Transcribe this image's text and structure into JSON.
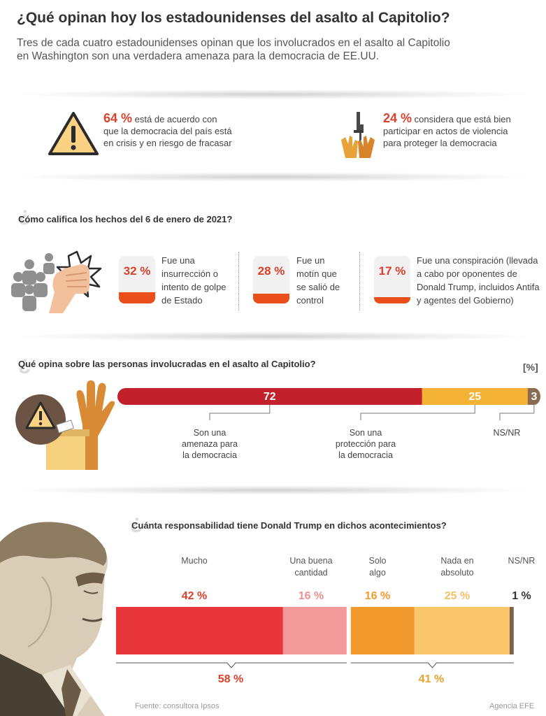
{
  "header": {
    "title": "¿Qué opinan hoy los estadounidenses del asalto al Capitolio?",
    "subtitle_line1": "Tres de cada cuatro estadounidenses opinan que los involucrados en el asalto al Capitolio",
    "subtitle_line2": "en Washington son una verdadera amenaza para la democracia de EE.UU."
  },
  "stats": [
    {
      "pct": "64 %",
      "line1": "está de acuerdo con",
      "line2": "que la democracia del país está",
      "line3": "en crisis y en riesgo de fracasar",
      "icon": "warning-icon"
    },
    {
      "pct": "24 %",
      "line1": "considera que está bien",
      "line2": "participar en actos de violencia",
      "line3": "para proteger la democracia",
      "icon": "rifle-hands-icon"
    }
  ],
  "section1": {
    "question": "Cómo califica los hechos del 6 de enero de 2021?",
    "items": [
      {
        "pct_label": "32 %",
        "value": 32,
        "lines": [
          "Fue una",
          "insurrección o",
          "intento de golpe",
          "de Estado"
        ]
      },
      {
        "pct_label": "28 %",
        "value": 28,
        "lines": [
          "Fue un",
          "motín que",
          "se salió de",
          "control"
        ]
      },
      {
        "pct_label": "17 %",
        "value": 17,
        "lines": [
          "Fue una conspiración (llevada",
          "a cabo por oponentes de",
          "Donald Trump, incluidos Antifa",
          "y agentes del Gobierno)"
        ]
      }
    ]
  },
  "section2": {
    "question": "Qué opina sobre las personas involucradas en el asalto al Capitolio?",
    "unit": "[%]",
    "labels": [
      [
        "Son una",
        "amenaza para",
        "la democracia"
      ],
      [
        "Son una",
        "protección para",
        "la democracia"
      ],
      [
        "NS/NR"
      ]
    ]
  },
  "section3": {
    "question": "Cuánta responsabilidad tiene Donald Trump en dichos acontecimientos?",
    "headers": [
      [
        "Mucho"
      ],
      [
        "Una buena",
        "cantidad"
      ],
      [
        "Solo",
        "algo"
      ],
      [
        "Nada en",
        "absoluto"
      ],
      [
        "NS/NR"
      ]
    ],
    "pct_labels": [
      "42 %",
      "16 %",
      "16 %",
      "25 %",
      "1 %"
    ],
    "group_totals": [
      "58 %",
      "41 %"
    ]
  },
  "footer": {
    "source": "Fuente: consultora Ipsos",
    "agency": "Agencia EFE"
  },
  "colors": {
    "accent_red": "#d9412b",
    "card_fill": "#e94e1b",
    "dark_red": "#c2202a",
    "amber": "#f5b335",
    "brown": "#8b6b52",
    "mucho": "#e8363a",
    "buena": "#f29a9a",
    "solo": "#f29a2e",
    "nada": "#f9c66b",
    "nsnr": "#7a6351"
  },
  "chart_data": [
    {
      "type": "bar",
      "title": "Cómo califica los hechos del 6 de enero de 2021?",
      "categories": [
        "Fue una insurrección o intento de golpe de Estado",
        "Fue un motín que se salió de control",
        "Fue una conspiración (llevada a cabo por oponentes de Donald Trump, incluidos Antifa y agentes del Gobierno)"
      ],
      "values": [
        32,
        28,
        17
      ]
    },
    {
      "type": "bar",
      "stacked": true,
      "title": "Qué opina sobre las personas involucradas en el asalto al Capitolio?",
      "unit": "[%]",
      "categories": [
        "Son una amenaza para la democracia",
        "Son una protección para la democracia",
        "NS/NR"
      ],
      "values": [
        72,
        25,
        3
      ]
    },
    {
      "type": "bar",
      "stacked": true,
      "title": "Cuánta responsabilidad tiene Donald Trump en dichos acontecimientos?",
      "categories": [
        "Mucho",
        "Una buena cantidad",
        "Solo algo",
        "Nada en absoluto",
        "NS/NR"
      ],
      "values": [
        42,
        16,
        16,
        25,
        1
      ],
      "group_totals": [
        58,
        41
      ]
    }
  ]
}
